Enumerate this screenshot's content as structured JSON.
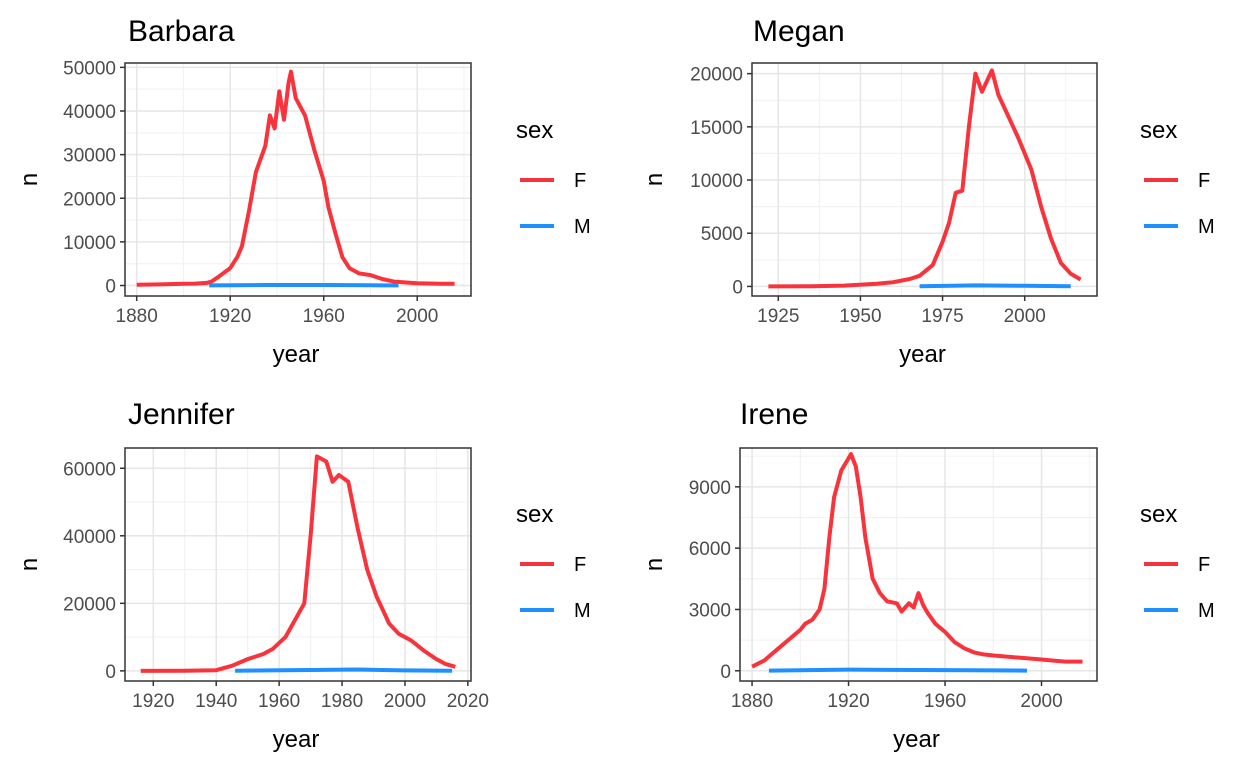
{
  "series_colors": {
    "F": "#F8333B",
    "M": "#1E90FF"
  },
  "chart_data": [
    {
      "type": "line",
      "title": "Barbara",
      "xlabel": "year",
      "ylabel": "n",
      "xlim": [
        1875,
        2023
      ],
      "ylim": [
        -2400,
        51000
      ],
      "xticks": [
        1880,
        1920,
        1960,
        2000
      ],
      "yticks": [
        0,
        10000,
        20000,
        30000,
        40000,
        50000
      ],
      "grid": true,
      "legend": {
        "title": "sex",
        "position": "right",
        "entries": [
          "F",
          "M"
        ]
      },
      "series": [
        {
          "name": "F",
          "points": [
            [
              1880,
              200
            ],
            [
              1890,
              260
            ],
            [
              1900,
              400
            ],
            [
              1905,
              450
            ],
            [
              1910,
              600
            ],
            [
              1912,
              900
            ],
            [
              1915,
              2000
            ],
            [
              1920,
              4000
            ],
            [
              1923,
              6500
            ],
            [
              1925,
              9000
            ],
            [
              1928,
              17000
            ],
            [
              1931,
              26000
            ],
            [
              1935,
              32000
            ],
            [
              1937,
              39000
            ],
            [
              1939,
              36000
            ],
            [
              1941,
              44500
            ],
            [
              1943,
              38000
            ],
            [
              1945,
              46500
            ],
            [
              1946,
              49000
            ],
            [
              1948,
              43000
            ],
            [
              1952,
              39000
            ],
            [
              1956,
              31000
            ],
            [
              1960,
              24000
            ],
            [
              1962,
              18000
            ],
            [
              1965,
              12000
            ],
            [
              1968,
              6500
            ],
            [
              1971,
              4000
            ],
            [
              1975,
              2800
            ],
            [
              1980,
              2400
            ],
            [
              1985,
              1500
            ],
            [
              1990,
              900
            ],
            [
              2000,
              500
            ],
            [
              2010,
              400
            ],
            [
              2016,
              400
            ]
          ]
        },
        {
          "name": "M",
          "points": [
            [
              1911,
              20
            ],
            [
              1935,
              120
            ],
            [
              1960,
              110
            ],
            [
              1980,
              50
            ],
            [
              1992,
              30
            ]
          ]
        }
      ]
    },
    {
      "type": "line",
      "title": "Megan",
      "xlabel": "year",
      "ylabel": "n",
      "xlim": [
        1917,
        2022
      ],
      "ylim": [
        -900,
        21000
      ],
      "xticks": [
        1925,
        1950,
        1975,
        2000
      ],
      "yticks": [
        0,
        5000,
        10000,
        15000,
        20000
      ],
      "grid": true,
      "legend": {
        "title": "sex",
        "position": "right",
        "entries": [
          "F",
          "M"
        ]
      },
      "series": [
        {
          "name": "F",
          "points": [
            [
              1922,
              5
            ],
            [
              1935,
              20
            ],
            [
              1945,
              80
            ],
            [
              1955,
              250
            ],
            [
              1960,
              400
            ],
            [
              1965,
              700
            ],
            [
              1968,
              1000
            ],
            [
              1972,
              2000
            ],
            [
              1975,
              4200
            ],
            [
              1977,
              6000
            ],
            [
              1979,
              8800
            ],
            [
              1981,
              9000
            ],
            [
              1983,
              15000
            ],
            [
              1985,
              20000
            ],
            [
              1987,
              18300
            ],
            [
              1990,
              20300
            ],
            [
              1992,
              18000
            ],
            [
              1995,
              16000
            ],
            [
              1998,
              14000
            ],
            [
              2002,
              11000
            ],
            [
              2005,
              7500
            ],
            [
              2008,
              4500
            ],
            [
              2011,
              2200
            ],
            [
              2014,
              1200
            ],
            [
              2017,
              650
            ]
          ]
        },
        {
          "name": "M",
          "points": [
            [
              1968,
              10
            ],
            [
              1985,
              100
            ],
            [
              2000,
              60
            ],
            [
              2014,
              20
            ]
          ]
        }
      ]
    },
    {
      "type": "line",
      "title": "Jennifer",
      "xlabel": "year",
      "ylabel": "n",
      "xlim": [
        1911,
        2021
      ],
      "ylim": [
        -3000,
        66000
      ],
      "xticks": [
        1920,
        1940,
        1960,
        1980,
        2000,
        2020
      ],
      "yticks": [
        0,
        20000,
        40000,
        60000
      ],
      "grid": true,
      "legend": {
        "title": "sex",
        "position": "right",
        "entries": [
          "F",
          "M"
        ]
      },
      "series": [
        {
          "name": "F",
          "points": [
            [
              1916,
              0
            ],
            [
              1930,
              50
            ],
            [
              1940,
              200
            ],
            [
              1945,
              1500
            ],
            [
              1950,
              3500
            ],
            [
              1955,
              5000
            ],
            [
              1958,
              6500
            ],
            [
              1962,
              10000
            ],
            [
              1965,
              15000
            ],
            [
              1968,
              20000
            ],
            [
              1970,
              40000
            ],
            [
              1972,
              63500
            ],
            [
              1975,
              62000
            ],
            [
              1977,
              56000
            ],
            [
              1979,
              58000
            ],
            [
              1982,
              56000
            ],
            [
              1985,
              42000
            ],
            [
              1988,
              30000
            ],
            [
              1991,
              22000
            ],
            [
              1995,
              14000
            ],
            [
              1998,
              11000
            ],
            [
              2002,
              9000
            ],
            [
              2006,
              6000
            ],
            [
              2010,
              3500
            ],
            [
              2013,
              2000
            ],
            [
              2016,
              1200
            ]
          ]
        },
        {
          "name": "M",
          "points": [
            [
              1946,
              50
            ],
            [
              1970,
              250
            ],
            [
              1985,
              400
            ],
            [
              2000,
              150
            ],
            [
              2015,
              50
            ]
          ]
        }
      ]
    },
    {
      "type": "line",
      "title": "Irene",
      "xlabel": "year",
      "ylabel": "n",
      "xlim": [
        1875,
        2023
      ],
      "ylim": [
        -500,
        10900
      ],
      "xticks": [
        1880,
        1920,
        1960,
        2000
      ],
      "yticks": [
        0,
        3000,
        6000,
        9000
      ],
      "grid": true,
      "legend": {
        "title": "sex",
        "position": "right",
        "entries": [
          "F",
          "M"
        ]
      },
      "series": [
        {
          "name": "F",
          "points": [
            [
              1880,
              200
            ],
            [
              1885,
              500
            ],
            [
              1890,
              1000
            ],
            [
              1895,
              1500
            ],
            [
              1900,
              2000
            ],
            [
              1902,
              2300
            ],
            [
              1905,
              2500
            ],
            [
              1908,
              3000
            ],
            [
              1910,
              4000
            ],
            [
              1912,
              6500
            ],
            [
              1914,
              8500
            ],
            [
              1917,
              9800
            ],
            [
              1921,
              10600
            ],
            [
              1923,
              10000
            ],
            [
              1925,
              8500
            ],
            [
              1927,
              6500
            ],
            [
              1930,
              4500
            ],
            [
              1933,
              3800
            ],
            [
              1936,
              3400
            ],
            [
              1940,
              3300
            ],
            [
              1942,
              2900
            ],
            [
              1945,
              3300
            ],
            [
              1947,
              3100
            ],
            [
              1949,
              3800
            ],
            [
              1951,
              3200
            ],
            [
              1953,
              2800
            ],
            [
              1956,
              2300
            ],
            [
              1960,
              1900
            ],
            [
              1964,
              1400
            ],
            [
              1968,
              1100
            ],
            [
              1972,
              900
            ],
            [
              1976,
              800
            ],
            [
              1980,
              750
            ],
            [
              1985,
              700
            ],
            [
              1990,
              650
            ],
            [
              1995,
              600
            ],
            [
              2000,
              550
            ],
            [
              2005,
              500
            ],
            [
              2010,
              450
            ],
            [
              2017,
              450
            ]
          ]
        },
        {
          "name": "M",
          "points": [
            [
              1887,
              10
            ],
            [
              1920,
              60
            ],
            [
              1950,
              40
            ],
            [
              1980,
              20
            ],
            [
              1994,
              10
            ]
          ]
        }
      ]
    }
  ]
}
